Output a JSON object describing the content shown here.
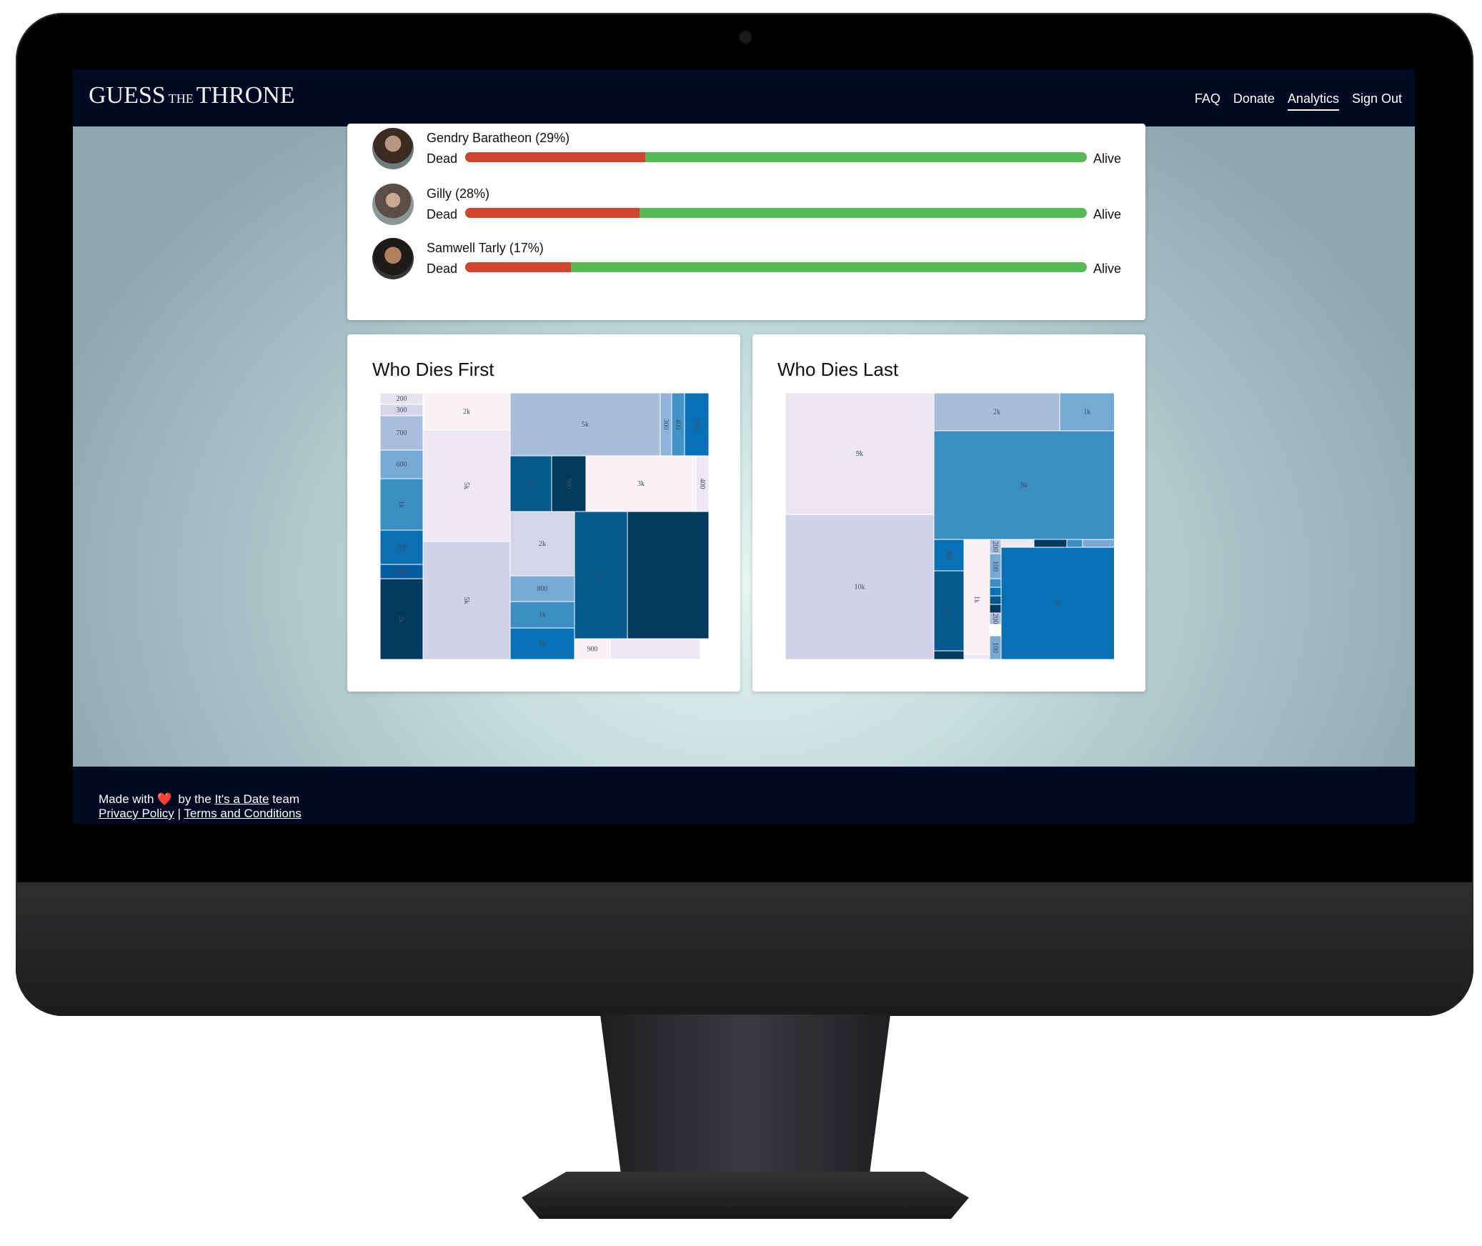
{
  "nav": {
    "logo": {
      "guess": "GUESS",
      "the": "THE",
      "throne": "THRONE"
    },
    "links": [
      {
        "label": "FAQ",
        "active": false
      },
      {
        "label": "Donate",
        "active": false
      },
      {
        "label": "Analytics",
        "active": true
      },
      {
        "label": "Sign Out",
        "active": false
      }
    ]
  },
  "status_rows": [
    {
      "name": "Gendry Baratheon (29%)",
      "dead_label": "Dead",
      "alive_label": "Alive",
      "dead_fraction": 0.29
    },
    {
      "name": "Gilly (28%)",
      "dead_label": "Dead",
      "alive_label": "Alive",
      "dead_fraction": 0.28
    },
    {
      "name": "Samwell Tarly (17%)",
      "dead_label": "Dead",
      "alive_label": "Alive",
      "dead_fraction": 0.17
    }
  ],
  "colors": {
    "navbar": "#000a22",
    "dead": "#d1452e",
    "alive": "#58b957"
  },
  "chart_data": [
    {
      "type": "treemap",
      "title": "Who Dies First",
      "cells": [
        {
          "label": "200",
          "color": "#e6e3f0"
        },
        {
          "label": "300",
          "color": "#d5d6e8"
        },
        {
          "label": "700",
          "color": "#a9bedd"
        },
        {
          "label": "600",
          "color": "#76a9d3"
        },
        {
          "label": "1k",
          "color": "#3a8ec2"
        },
        {
          "label": "700",
          "color": "#0e6fb0"
        },
        {
          "label": "300",
          "color": "#055da0"
        },
        {
          "label": "2k",
          "color": "#023a5e"
        },
        {
          "label": "2k",
          "color": "#fbf2f8"
        },
        {
          "label": "5k",
          "color": "#ede8f3"
        },
        {
          "label": "5k",
          "color": "#d0d2e5"
        },
        {
          "label": "5k",
          "color": "#a8bcdb"
        },
        {
          "label": "300",
          "color": "#8fb3d8"
        },
        {
          "label": "400",
          "color": "#4493c6"
        },
        {
          "label": "700",
          "color": "#0a70b5"
        },
        {
          "label": "1k",
          "color": "#045a8d"
        },
        {
          "label": "900",
          "color": "#023a5e"
        },
        {
          "label": "3k",
          "color": "#fbf2f8"
        },
        {
          "label": "400",
          "color": "#ede8f3"
        },
        {
          "label": "2k",
          "color": "#d4d5e8"
        },
        {
          "label": "800",
          "color": "#a8bcdb"
        },
        {
          "label": "800",
          "color": "#76a9d3"
        },
        {
          "label": "1k",
          "color": "#3a8ec2"
        },
        {
          "label": "3k",
          "color": "#0a70b5"
        },
        {
          "label": "5k",
          "color": "#045a8d"
        },
        {
          "label": "",
          "color": "#023a5e"
        },
        {
          "label": "900",
          "color": "#fbf2f8"
        },
        {
          "label": "",
          "color": "#ede8f3"
        }
      ]
    },
    {
      "type": "treemap",
      "title": "Who Dies Last",
      "cells": [
        {
          "label": "9k",
          "color": "#ebe6f2"
        },
        {
          "label": "10k",
          "color": "#d0d2e5"
        },
        {
          "label": "2k",
          "color": "#a8bcdb"
        },
        {
          "label": "1k",
          "color": "#76a9d3"
        },
        {
          "label": "9k",
          "color": "#3a8ec2"
        },
        {
          "label": "300",
          "color": "#0a70b5"
        },
        {
          "label": "1k",
          "color": "#045a8d"
        },
        {
          "label": "",
          "color": "#023a5e"
        },
        {
          "label": "1k",
          "color": "#fbf2f8"
        },
        {
          "label": "",
          "color": "#ede8f3"
        },
        {
          "label": "200",
          "color": "#a8bcdb"
        },
        {
          "label": "100",
          "color": "#76a9d3"
        },
        {
          "label": "",
          "color": "#3a8ec2"
        },
        {
          "label": "",
          "color": "#0a70b5"
        },
        {
          "label": "",
          "color": "#045a8d"
        },
        {
          "label": "",
          "color": "#023a5e"
        },
        {
          "label": "200",
          "color": "#a8bcdb"
        },
        {
          "label": "100",
          "color": "#76a9d3"
        },
        {
          "label": "6k",
          "color": "#0a70b5"
        },
        {
          "label": "",
          "color": "#ede8f3"
        },
        {
          "label": "",
          "color": "#023a5e"
        },
        {
          "label": "",
          "color": "#3a8ec2"
        },
        {
          "label": "",
          "color": "#76a9d3"
        }
      ]
    }
  ],
  "footer": {
    "made_with": "Made with",
    "heart": "❤️",
    "by_the": "by the",
    "team_link": "It's a Date",
    "team": "team",
    "privacy": "Privacy Policy",
    "separator": "|",
    "terms": "Terms and Conditions"
  }
}
